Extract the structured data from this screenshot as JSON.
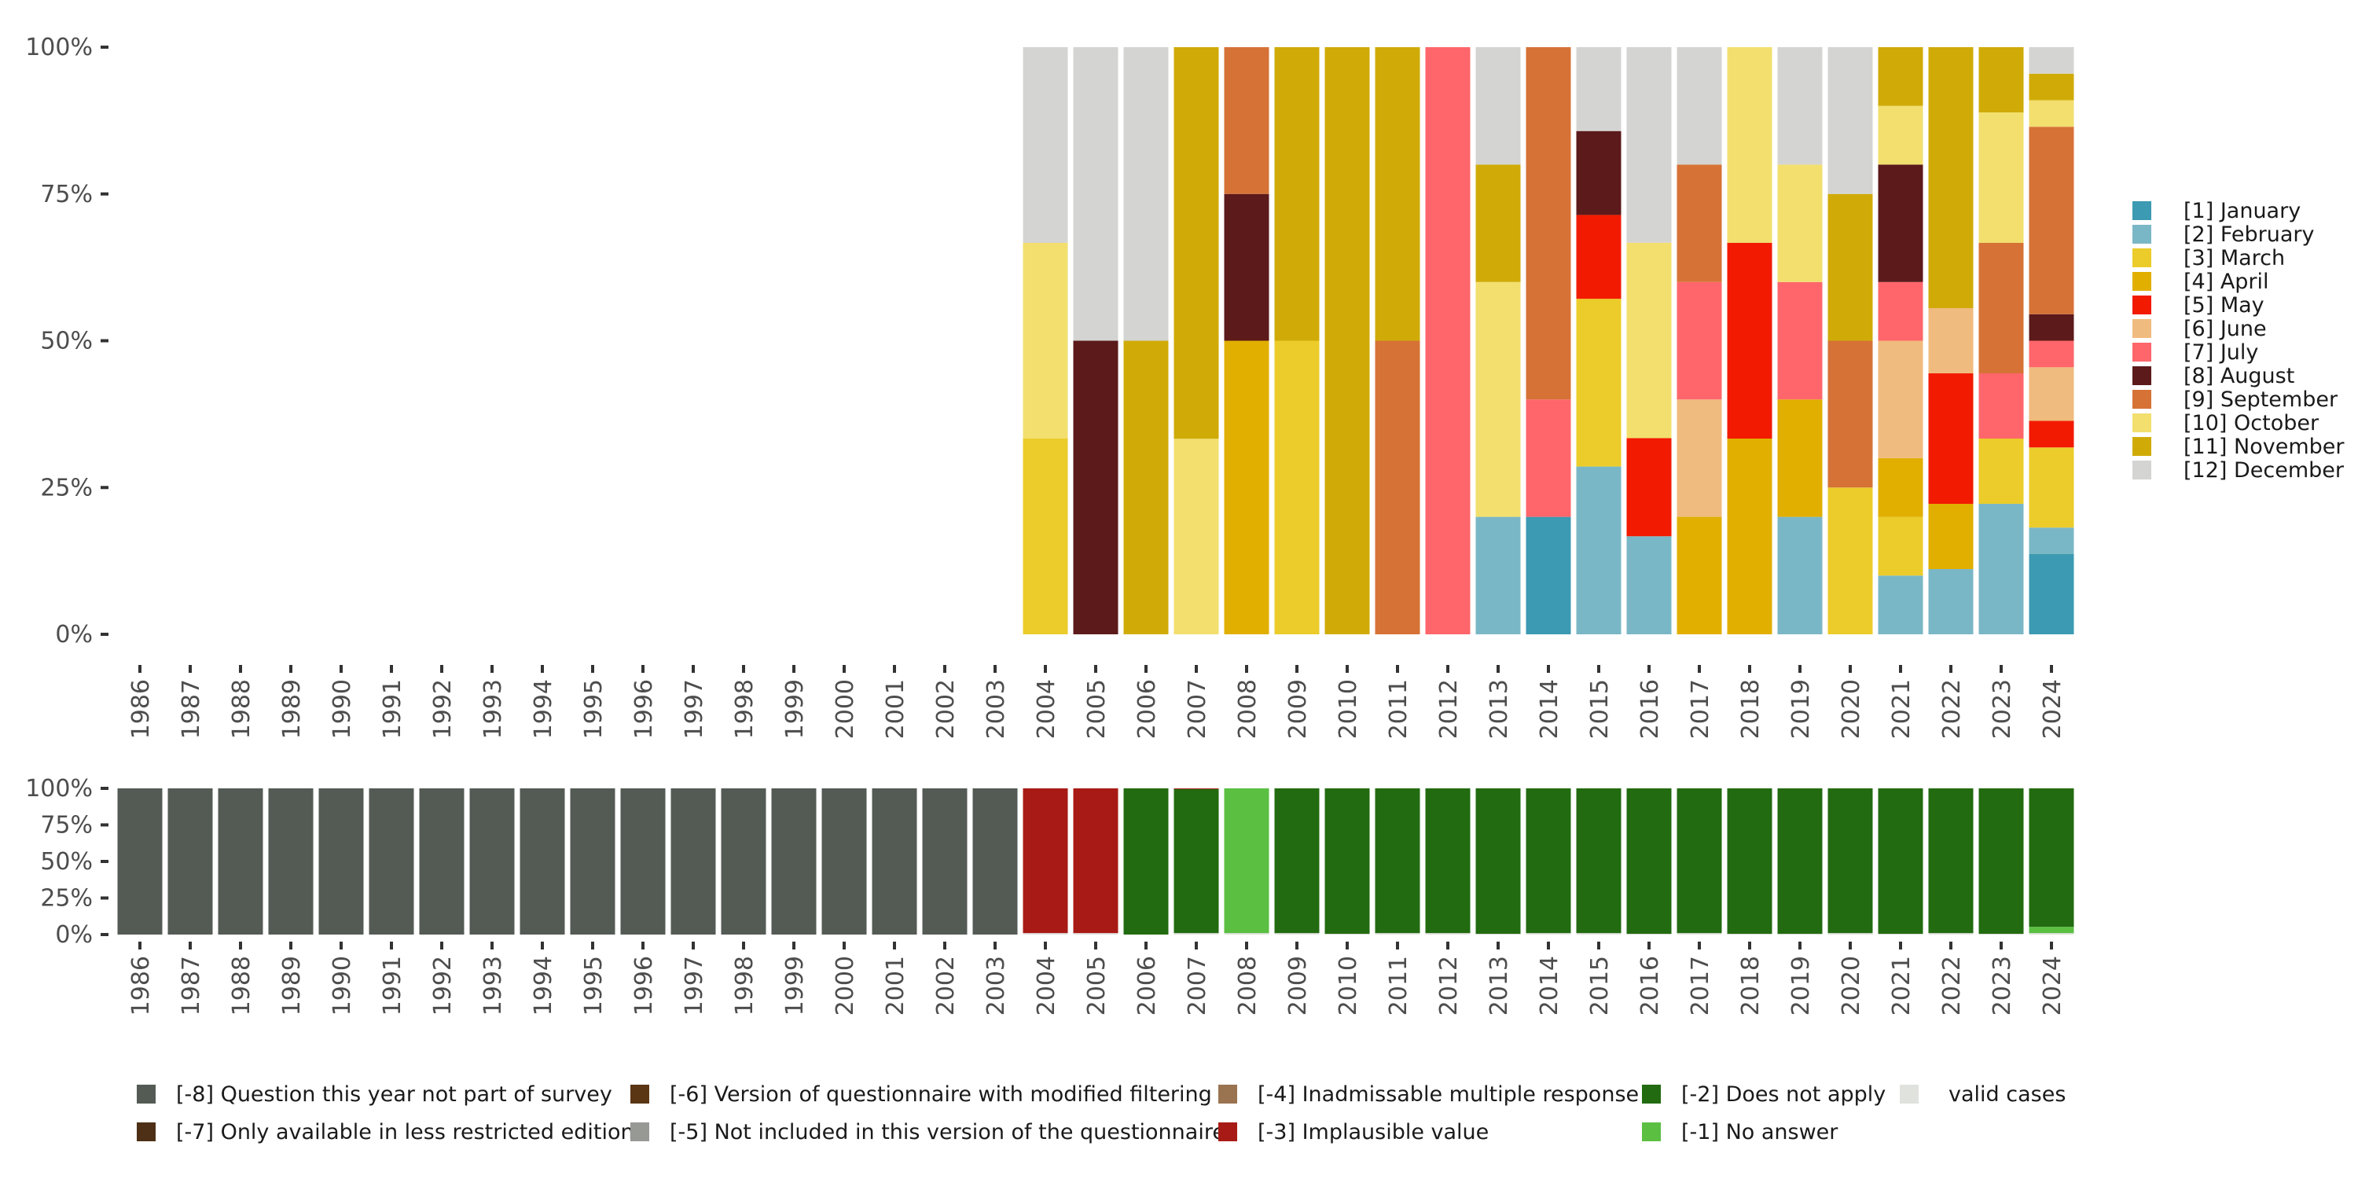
{
  "chart_data": [
    {
      "type": "bar",
      "stacked": true,
      "normalized": true,
      "title": "",
      "xlabel": "",
      "ylabel": "",
      "ylim": [
        0,
        1
      ],
      "y_ticks": [
        "0%",
        "25%",
        "50%",
        "75%",
        "100%"
      ],
      "grid": false,
      "legend_position": "right",
      "categories": [
        "1986",
        "1987",
        "1988",
        "1989",
        "1990",
        "1991",
        "1992",
        "1993",
        "1994",
        "1995",
        "1996",
        "1997",
        "1998",
        "1999",
        "2000",
        "2001",
        "2002",
        "2003",
        "2004",
        "2005",
        "2006",
        "2007",
        "2008",
        "2009",
        "2010",
        "2011",
        "2012",
        "2013",
        "2014",
        "2015",
        "2016",
        "2017",
        "2018",
        "2019",
        "2020",
        "2021",
        "2022",
        "2023",
        "2024"
      ],
      "series": [
        {
          "name": "[1] January",
          "color": "#3C9AB2",
          "values": [
            0,
            0,
            0,
            0,
            0,
            0,
            0,
            0,
            0,
            0,
            0,
            0,
            0,
            0,
            0,
            0,
            0,
            0,
            0,
            0,
            0,
            0,
            0,
            0,
            0,
            0,
            0,
            0,
            0.2,
            0,
            0,
            0,
            0,
            0,
            0,
            0,
            0,
            0,
            0.136
          ]
        },
        {
          "name": "[2] February",
          "color": "#7AB7C6",
          "values": [
            0,
            0,
            0,
            0,
            0,
            0,
            0,
            0,
            0,
            0,
            0,
            0,
            0,
            0,
            0,
            0,
            0,
            0,
            0,
            0,
            0,
            0,
            0,
            0,
            0,
            0,
            0,
            0.2,
            0,
            0.286,
            0.167,
            0,
            0,
            0.2,
            0,
            0.1,
            0.111,
            0.222,
            0.045
          ]
        },
        {
          "name": "[3] March",
          "color": "#EBCC2A",
          "values": [
            0,
            0,
            0,
            0,
            0,
            0,
            0,
            0,
            0,
            0,
            0,
            0,
            0,
            0,
            0,
            0,
            0,
            0,
            0.333,
            0,
            0,
            0,
            0,
            0.5,
            0,
            0,
            0,
            0,
            0,
            0.286,
            0,
            0,
            0,
            0,
            0.25,
            0.1,
            0,
            0.111,
            0.136
          ]
        },
        {
          "name": "[4] April",
          "color": "#E1AF00",
          "values": [
            0,
            0,
            0,
            0,
            0,
            0,
            0,
            0,
            0,
            0,
            0,
            0,
            0,
            0,
            0,
            0,
            0,
            0,
            0,
            0,
            0,
            0,
            0.5,
            0,
            0,
            0,
            0,
            0,
            0,
            0,
            0,
            0.2,
            0.333,
            0.2,
            0,
            0.1,
            0.111,
            0,
            0
          ]
        },
        {
          "name": "[5] May",
          "color": "#F21A00",
          "values": [
            0,
            0,
            0,
            0,
            0,
            0,
            0,
            0,
            0,
            0,
            0,
            0,
            0,
            0,
            0,
            0,
            0,
            0,
            0,
            0,
            0,
            0,
            0,
            0,
            0,
            0,
            0,
            0,
            0,
            0.143,
            0.167,
            0,
            0.333,
            0,
            0,
            0,
            0.222,
            0,
            0.045
          ]
        },
        {
          "name": "[6] June",
          "color": "#F0BB7E",
          "values": [
            0,
            0,
            0,
            0,
            0,
            0,
            0,
            0,
            0,
            0,
            0,
            0,
            0,
            0,
            0,
            0,
            0,
            0,
            0,
            0,
            0,
            0,
            0,
            0,
            0,
            0,
            0,
            0,
            0,
            0,
            0,
            0.2,
            0,
            0,
            0,
            0.2,
            0.111,
            0,
            0.091
          ]
        },
        {
          "name": "[7] July",
          "color": "#FF666B",
          "values": [
            0,
            0,
            0,
            0,
            0,
            0,
            0,
            0,
            0,
            0,
            0,
            0,
            0,
            0,
            0,
            0,
            0,
            0,
            0,
            0,
            0,
            0,
            0,
            0,
            0,
            0,
            1.0,
            0,
            0.2,
            0,
            0,
            0.2,
            0,
            0.2,
            0,
            0.1,
            0,
            0.111,
            0.045
          ]
        },
        {
          "name": "[8] August",
          "color": "#5C1A1A",
          "values": [
            0,
            0,
            0,
            0,
            0,
            0,
            0,
            0,
            0,
            0,
            0,
            0,
            0,
            0,
            0,
            0,
            0,
            0,
            0,
            0.5,
            0,
            0,
            0.25,
            0,
            0,
            0,
            0,
            0,
            0,
            0.143,
            0,
            0,
            0,
            0,
            0,
            0.2,
            0,
            0,
            0.045
          ]
        },
        {
          "name": "[9] September",
          "color": "#D67236",
          "values": [
            0,
            0,
            0,
            0,
            0,
            0,
            0,
            0,
            0,
            0,
            0,
            0,
            0,
            0,
            0,
            0,
            0,
            0,
            0,
            0,
            0,
            0,
            0.25,
            0,
            0,
            0.5,
            0,
            0,
            0.6,
            0,
            0,
            0.2,
            0,
            0,
            0.25,
            0,
            0,
            0.222,
            0.318
          ]
        },
        {
          "name": "[10] October",
          "color": "#F2DF6E",
          "values": [
            0,
            0,
            0,
            0,
            0,
            0,
            0,
            0,
            0,
            0,
            0,
            0,
            0,
            0,
            0,
            0,
            0,
            0,
            0.333,
            0,
            0,
            0.333,
            0,
            0,
            0,
            0,
            0,
            0.4,
            0,
            0,
            0.333,
            0,
            0.333,
            0.2,
            0,
            0.1,
            0,
            0.222,
            0.045
          ]
        },
        {
          "name": "[11] November",
          "color": "#D0AB08",
          "values": [
            0,
            0,
            0,
            0,
            0,
            0,
            0,
            0,
            0,
            0,
            0,
            0,
            0,
            0,
            0,
            0,
            0,
            0,
            0,
            0,
            0.5,
            0.667,
            0,
            0.5,
            1.0,
            0.5,
            0,
            0.2,
            0,
            0,
            0,
            0,
            0,
            0,
            0.25,
            0.1,
            0.444,
            0.111,
            0.045
          ]
        },
        {
          "name": "[12] December",
          "color": "#D4D4D2",
          "values": [
            0,
            0,
            0,
            0,
            0,
            0,
            0,
            0,
            0,
            0,
            0,
            0,
            0,
            0,
            0,
            0,
            0,
            0,
            0.333,
            0.5,
            0.5,
            0,
            0,
            0,
            0,
            0,
            0,
            0.2,
            0,
            0.143,
            0.333,
            0.2,
            0,
            0.2,
            0.25,
            0,
            0,
            0,
            0.045
          ]
        }
      ]
    },
    {
      "type": "bar",
      "stacked": true,
      "normalized": true,
      "title": "",
      "xlabel": "",
      "ylabel": "",
      "ylim": [
        0,
        1
      ],
      "y_ticks": [
        "0%",
        "25%",
        "50%",
        "75%",
        "100%"
      ],
      "grid": false,
      "legend_position": "bottom",
      "categories": [
        "1986",
        "1987",
        "1988",
        "1989",
        "1990",
        "1991",
        "1992",
        "1993",
        "1994",
        "1995",
        "1996",
        "1997",
        "1998",
        "1999",
        "2000",
        "2001",
        "2002",
        "2003",
        "2004",
        "2005",
        "2006",
        "2007",
        "2008",
        "2009",
        "2010",
        "2011",
        "2012",
        "2013",
        "2014",
        "2015",
        "2016",
        "2017",
        "2018",
        "2019",
        "2020",
        "2021",
        "2022",
        "2023",
        "2024"
      ],
      "series": [
        {
          "name": "valid cases",
          "color": "#E0E2DE",
          "values": [
            0,
            0,
            0,
            0,
            0,
            0,
            0,
            0,
            0,
            0,
            0,
            0,
            0,
            0,
            0,
            0,
            0,
            0,
            0.01,
            0.01,
            0,
            0.01,
            0.01,
            0.01,
            0.005,
            0.01,
            0.01,
            0.005,
            0.01,
            0.01,
            0.005,
            0.01,
            0.005,
            0.005,
            0.01,
            0.005,
            0.01,
            0.005,
            0.01
          ]
        },
        {
          "name": "[-1] No answer",
          "color": "#5BBF42",
          "values": [
            0,
            0,
            0,
            0,
            0,
            0,
            0,
            0,
            0,
            0,
            0,
            0,
            0,
            0,
            0,
            0,
            0,
            0,
            0,
            0,
            0,
            0,
            0.99,
            0,
            0,
            0,
            0,
            0,
            0,
            0,
            0,
            0,
            0,
            0,
            0,
            0,
            0,
            0,
            0.043
          ]
        },
        {
          "name": "[-2] Does not apply",
          "color": "#226B10",
          "values": [
            0,
            0,
            0,
            0,
            0,
            0,
            0,
            0,
            0,
            0,
            0,
            0,
            0,
            0,
            0,
            0,
            0,
            0,
            0,
            0,
            1.0,
            0.985,
            0,
            0.99,
            0.995,
            0.99,
            0.99,
            0.995,
            0.99,
            0.99,
            0.995,
            0.99,
            0.995,
            0.995,
            0.99,
            0.995,
            0.99,
            0.995,
            0.947
          ]
        },
        {
          "name": "[-3] Implausible value",
          "color": "#A81A15",
          "values": [
            0,
            0,
            0,
            0,
            0,
            0,
            0,
            0,
            0,
            0,
            0,
            0,
            0,
            0,
            0,
            0,
            0,
            0,
            0.99,
            0.99,
            0,
            0.005,
            0,
            0,
            0,
            0,
            0,
            0,
            0,
            0,
            0,
            0,
            0,
            0,
            0,
            0,
            0,
            0,
            0
          ]
        },
        {
          "name": "[-4] Inadmissable multiple response",
          "color": "#9A7350",
          "values": [
            0,
            0,
            0,
            0,
            0,
            0,
            0,
            0,
            0,
            0,
            0,
            0,
            0,
            0,
            0,
            0,
            0,
            0,
            0,
            0,
            0,
            0,
            0,
            0,
            0,
            0,
            0,
            0,
            0,
            0,
            0,
            0,
            0,
            0,
            0,
            0,
            0,
            0,
            0
          ]
        },
        {
          "name": "[-5] Not included in this version of the questionnaire",
          "color": "#969994",
          "values": [
            0,
            0,
            0,
            0,
            0,
            0,
            0,
            0,
            0,
            0,
            0,
            0,
            0,
            0,
            0,
            0,
            0,
            0,
            0,
            0,
            0,
            0,
            0,
            0,
            0,
            0,
            0,
            0,
            0,
            0,
            0,
            0,
            0,
            0,
            0,
            0,
            0,
            0,
            0
          ]
        },
        {
          "name": "[-6] Version of questionnaire with modified filtering",
          "color": "#5A3615",
          "values": [
            0,
            0,
            0,
            0,
            0,
            0,
            0,
            0,
            0,
            0,
            0,
            0,
            0,
            0,
            0,
            0,
            0,
            0,
            0,
            0,
            0,
            0,
            0,
            0,
            0,
            0,
            0,
            0,
            0,
            0,
            0,
            0,
            0,
            0,
            0,
            0,
            0,
            0,
            0
          ]
        },
        {
          "name": "[-7] Only available in less restricted edition",
          "color": "#4E3016",
          "values": [
            0,
            0,
            0,
            0,
            0,
            0,
            0,
            0,
            0,
            0,
            0,
            0,
            0,
            0,
            0,
            0,
            0,
            0,
            0,
            0,
            0,
            0,
            0,
            0,
            0,
            0,
            0,
            0,
            0,
            0,
            0,
            0,
            0,
            0,
            0,
            0,
            0,
            0,
            0
          ]
        },
        {
          "name": "[-8] Question this year not part of survey",
          "color": "#545B55",
          "values": [
            1,
            1,
            1,
            1,
            1,
            1,
            1,
            1,
            1,
            1,
            1,
            1,
            1,
            1,
            1,
            1,
            1,
            1,
            0,
            0,
            0,
            0,
            0,
            0,
            0,
            0,
            0,
            0,
            0,
            0,
            0,
            0,
            0,
            0,
            0,
            0,
            0,
            0,
            0
          ]
        }
      ],
      "legend_order": [
        "[-8] Question this year not part of survey",
        "[-7] Only available in less restricted edition",
        "[-6] Version of questionnaire with modified filtering",
        "[-5] Not included in this version of the questionnaire",
        "[-4] Inadmissable multiple response",
        "[-3] Implausible value",
        "[-2] Does not apply",
        "[-1] No answer",
        "valid cases"
      ]
    }
  ]
}
